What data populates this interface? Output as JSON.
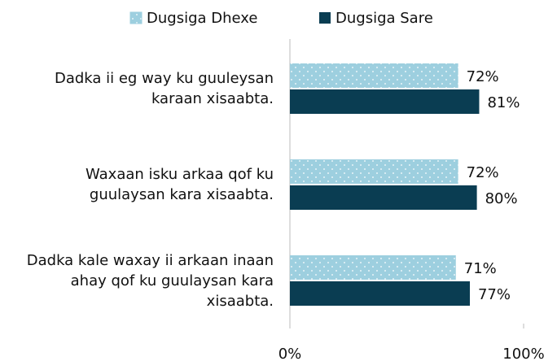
{
  "chart_data": {
    "type": "hbar",
    "categories": [
      "Dadka ii eg way ku guuleysan\nkaraan xisaabta.",
      "Waxaan isku arkaa qof ku\nguulaysan kara xisaabta.",
      "Dadka kale waxay ii arkaan inaan\nahay qof ku guulaysan kara\nxisaabta."
    ],
    "series": [
      {
        "name": "Dugsiga Dhexe",
        "color": "#9dcfdf",
        "values": [
          72,
          72,
          71
        ],
        "value_labels": [
          "72%",
          "72%",
          "71%"
        ]
      },
      {
        "name": "Dugsiga Sare",
        "color": "#0a3d52",
        "values": [
          81,
          80,
          77
        ],
        "value_labels": [
          "81%",
          "80%",
          "77%"
        ]
      }
    ],
    "xlim": [
      0,
      100
    ],
    "xticks": [
      {
        "value": 0,
        "label": "0%"
      },
      {
        "value": 100,
        "label": "100%"
      }
    ],
    "legend": "top"
  }
}
